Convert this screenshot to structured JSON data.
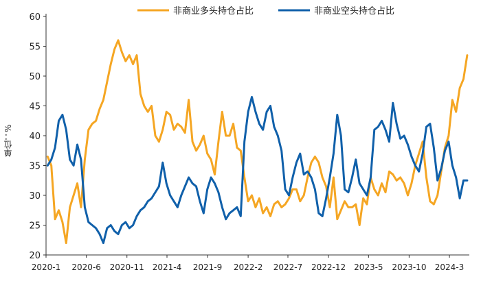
{
  "chart_data": {
    "type": "line",
    "ylabel": "单位：%",
    "ylim": [
      20,
      60
    ],
    "yticks": [
      20,
      25,
      30,
      35,
      40,
      45,
      50,
      55,
      60
    ],
    "xtick_labels": [
      "2020-1",
      "2020-6",
      "2020-11",
      "2021-4",
      "2021-9",
      "2022-2",
      "2022-7",
      "2022-12",
      "2023-5",
      "2023-10",
      "2024-3"
    ],
    "x_dates": [
      "2020-01-07",
      "2020-01-21",
      "2020-02-04",
      "2020-02-18",
      "2020-03-03",
      "2020-03-17",
      "2020-03-31",
      "2020-04-14",
      "2020-04-28",
      "2020-05-12",
      "2020-05-26",
      "2020-06-09",
      "2020-06-23",
      "2020-07-07",
      "2020-07-21",
      "2020-08-04",
      "2020-08-18",
      "2020-09-01",
      "2020-09-15",
      "2020-09-29",
      "2020-10-13",
      "2020-10-27",
      "2020-11-10",
      "2020-11-24",
      "2020-12-08",
      "2020-12-22",
      "2021-01-05",
      "2021-01-19",
      "2021-02-02",
      "2021-02-16",
      "2021-03-02",
      "2021-03-16",
      "2021-03-30",
      "2021-04-13",
      "2021-04-27",
      "2021-05-11",
      "2021-05-25",
      "2021-06-08",
      "2021-06-22",
      "2021-07-06",
      "2021-07-20",
      "2021-08-03",
      "2021-08-17",
      "2021-08-31",
      "2021-09-14",
      "2021-09-28",
      "2021-10-12",
      "2021-10-26",
      "2021-11-09",
      "2021-11-23",
      "2021-12-07",
      "2021-12-21",
      "2022-01-04",
      "2022-01-18",
      "2022-02-01",
      "2022-02-15",
      "2022-03-01",
      "2022-03-15",
      "2022-03-29",
      "2022-04-12",
      "2022-04-26",
      "2022-05-10",
      "2022-05-24",
      "2022-06-07",
      "2022-06-21",
      "2022-07-05",
      "2022-07-19",
      "2022-08-02",
      "2022-08-16",
      "2022-08-30",
      "2022-09-13",
      "2022-09-27",
      "2022-10-11",
      "2022-10-25",
      "2022-11-08",
      "2022-11-22",
      "2022-12-06",
      "2022-12-20",
      "2023-01-03",
      "2023-01-17",
      "2023-01-31",
      "2023-02-14",
      "2023-02-28",
      "2023-03-14",
      "2023-03-28",
      "2023-04-11",
      "2023-04-25",
      "2023-05-09",
      "2023-05-23",
      "2023-06-06",
      "2023-06-20",
      "2023-07-04",
      "2023-07-18",
      "2023-08-01",
      "2023-08-15",
      "2023-08-29",
      "2023-09-12",
      "2023-09-26",
      "2023-10-10",
      "2023-10-24",
      "2023-11-07",
      "2023-11-21",
      "2023-12-05",
      "2023-12-19",
      "2024-01-02",
      "2024-01-16",
      "2024-01-30",
      "2024-02-13",
      "2024-02-27",
      "2024-03-12",
      "2024-03-26",
      "2024-04-09",
      "2024-04-23",
      "2024-05-07"
    ],
    "series": [
      {
        "name": "非商业多头持仓占比",
        "color": "#F5A623",
        "values": [
          36.5,
          35.0,
          26.0,
          27.5,
          25.5,
          22.0,
          28.0,
          30.0,
          32.0,
          28.0,
          36.0,
          41.0,
          42.0,
          42.5,
          44.5,
          46.0,
          49.0,
          52.0,
          54.5,
          56.0,
          54.0,
          52.5,
          53.5,
          52.0,
          53.5,
          47.0,
          45.0,
          44.0,
          45.0,
          40.0,
          39.0,
          41.0,
          44.0,
          43.5,
          41.0,
          42.0,
          41.5,
          40.5,
          46.0,
          39.0,
          37.5,
          38.5,
          40.0,
          37.0,
          36.0,
          33.5,
          39.0,
          44.0,
          40.0,
          40.0,
          42.0,
          38.0,
          37.5,
          33.0,
          29.0,
          30.0,
          28.0,
          29.5,
          27.0,
          28.0,
          26.5,
          28.5,
          29.0,
          28.0,
          28.5,
          29.5,
          31.0,
          31.0,
          29.0,
          30.0,
          33.0,
          35.5,
          36.5,
          35.5,
          33.0,
          31.5,
          28.0,
          33.0,
          26.0,
          27.5,
          29.0,
          28.0,
          28.0,
          28.5,
          25.0,
          29.5,
          28.5,
          33.0,
          31.0,
          30.0,
          32.0,
          30.5,
          34.0,
          33.5,
          32.5,
          33.0,
          32.0,
          30.0,
          32.0,
          35.0,
          37.0,
          39.0,
          33.0,
          29.0,
          28.5,
          30.0,
          34.0,
          38.0,
          40.0,
          46.0,
          44.0,
          48.0,
          49.5,
          53.5
        ]
      },
      {
        "name": "非商业空头持仓占比",
        "color": "#1060AA",
        "values": [
          35.0,
          36.0,
          38.0,
          42.5,
          43.5,
          41.0,
          36.0,
          35.0,
          38.5,
          36.0,
          28.0,
          25.5,
          25.0,
          24.5,
          23.5,
          22.0,
          24.5,
          25.0,
          24.0,
          23.5,
          25.0,
          25.5,
          24.5,
          25.0,
          26.5,
          27.5,
          28.0,
          29.0,
          29.5,
          30.5,
          31.5,
          35.5,
          32.0,
          30.0,
          29.0,
          28.0,
          30.0,
          31.5,
          33.0,
          32.0,
          31.5,
          29.0,
          27.0,
          31.0,
          33.0,
          32.0,
          30.5,
          28.0,
          26.0,
          27.0,
          27.5,
          28.0,
          26.5,
          39.0,
          44.0,
          46.5,
          44.0,
          42.0,
          41.0,
          44.0,
          45.0,
          41.5,
          40.0,
          37.5,
          31.0,
          30.0,
          33.0,
          35.5,
          37.0,
          33.5,
          34.0,
          33.0,
          31.0,
          27.0,
          26.5,
          29.5,
          33.0,
          37.0,
          43.5,
          40.0,
          31.0,
          30.5,
          33.0,
          36.0,
          32.0,
          31.0,
          30.0,
          33.0,
          41.0,
          41.5,
          42.5,
          41.0,
          39.0,
          45.5,
          42.0,
          39.5,
          40.0,
          38.5,
          36.5,
          35.0,
          34.0,
          37.0,
          41.5,
          42.0,
          38.0,
          32.5,
          34.5,
          37.5,
          39.0,
          35.0,
          33.0,
          29.5,
          32.5,
          32.5
        ]
      }
    ],
    "legend": "top-center",
    "grid": false
  }
}
